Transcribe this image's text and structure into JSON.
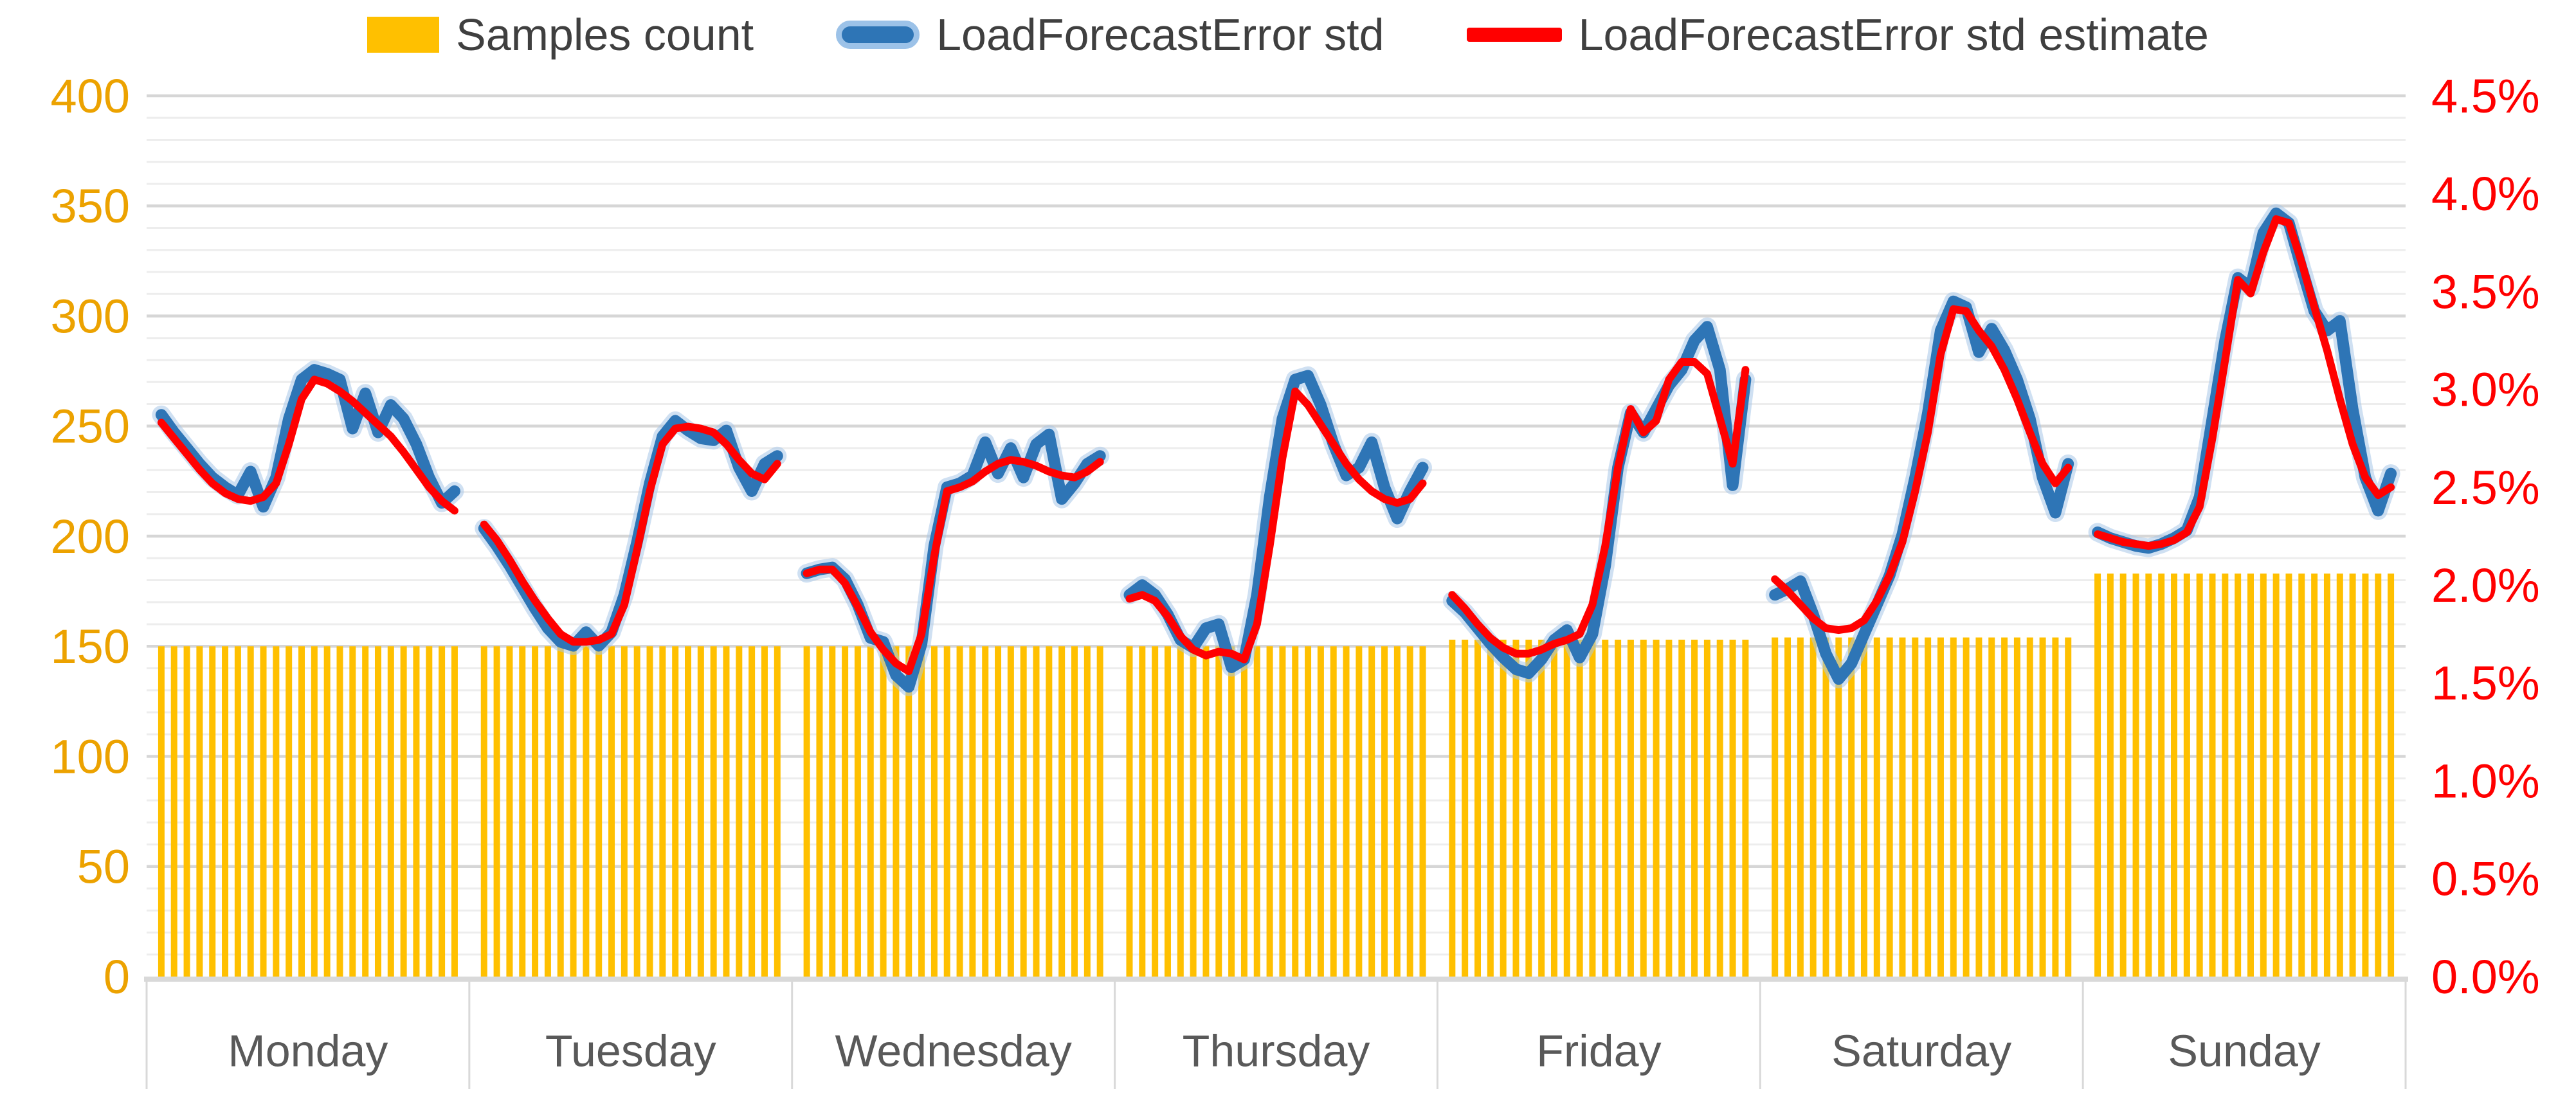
{
  "legend": {
    "items": [
      {
        "label": "Samples count",
        "swatch": "bar-swatch",
        "color": "#FFC000"
      },
      {
        "label": "LoadForecastError std",
        "swatch": "thick-line-swatch",
        "color": "#2E75B6",
        "halo_color": "#9CC2E8"
      },
      {
        "label": "LoadForecastError std estimate",
        "swatch": "thin-line-swatch",
        "color": "#FF0000"
      }
    ]
  },
  "chart_data": {
    "type": "combo: bar (left axis) + two lines (right axis), 24 hourly points per day",
    "title": "",
    "grid": "horizontal major every 50 (left units), minor every 10",
    "legend_position": "top-center",
    "categories": [
      "Monday",
      "Tuesday",
      "Wednesday",
      "Thursday",
      "Friday",
      "Saturday",
      "Sunday"
    ],
    "points_per_day": 24,
    "left_axis": {
      "ticks": [
        0,
        50,
        100,
        150,
        200,
        250,
        300,
        350,
        400
      ],
      "range": [
        0,
        400
      ],
      "label_color": "#ECA200",
      "side": "left"
    },
    "right_axis": {
      "ticks": [
        "0.0%",
        "0.5%",
        "1.0%",
        "1.5%",
        "2.0%",
        "2.5%",
        "3.0%",
        "3.5%",
        "4.0%",
        "4.5%"
      ],
      "range_pct": [
        0,
        4.5
      ],
      "label_color": "#FF0000",
      "side": "right"
    },
    "x_axis": {
      "label_color": "#595959"
    },
    "series": [
      {
        "name": "Samples count",
        "kind": "bar",
        "axis": "left",
        "color": "#FFC000",
        "constant_value_per_day": {
          "Monday": 150,
          "Tuesday": 150,
          "Wednesday": 150,
          "Thursday": 150,
          "Friday": 153,
          "Saturday": 154,
          "Sunday": 183
        }
      },
      {
        "name": "LoadForecastError std",
        "kind": "line",
        "axis": "right",
        "color": "#2E75B6",
        "halo_color": "#A8C7E8",
        "values_pct": {
          "Monday": [
            2.87,
            2.78,
            2.7,
            2.62,
            2.55,
            2.5,
            2.46,
            2.58,
            2.4,
            2.55,
            2.85,
            3.05,
            3.1,
            3.08,
            3.05,
            2.8,
            2.98,
            2.78,
            2.92,
            2.85,
            2.72,
            2.55,
            2.42,
            2.48
          ],
          "Tuesday": [
            2.29,
            2.2,
            2.1,
            1.99,
            1.88,
            1.78,
            1.71,
            1.69,
            1.76,
            1.69,
            1.76,
            1.95,
            2.22,
            2.52,
            2.76,
            2.84,
            2.79,
            2.75,
            2.74,
            2.79,
            2.6,
            2.48,
            2.62,
            2.66
          ],
          "Wednesday": [
            2.06,
            2.08,
            2.09,
            2.03,
            1.9,
            1.73,
            1.71,
            1.54,
            1.48,
            1.7,
            2.2,
            2.5,
            2.52,
            2.56,
            2.73,
            2.57,
            2.7,
            2.55,
            2.72,
            2.77,
            2.44,
            2.52,
            2.62,
            2.66
          ],
          "Thursday": [
            1.95,
            2.0,
            1.95,
            1.85,
            1.72,
            1.68,
            1.78,
            1.8,
            1.58,
            1.62,
            1.95,
            2.45,
            2.85,
            3.05,
            3.07,
            2.92,
            2.72,
            2.56,
            2.6,
            2.73,
            2.5,
            2.34,
            2.48,
            2.6
          ],
          "Friday": [
            1.92,
            1.86,
            1.78,
            1.7,
            1.63,
            1.57,
            1.55,
            1.62,
            1.72,
            1.77,
            1.63,
            1.75,
            2.1,
            2.6,
            2.88,
            2.78,
            2.9,
            3.02,
            3.1,
            3.25,
            3.32,
            3.1,
            2.51,
            3.05
          ],
          "Saturday": [
            1.95,
            1.98,
            2.02,
            1.85,
            1.65,
            1.52,
            1.6,
            1.75,
            1.9,
            2.05,
            2.26,
            2.55,
            2.88,
            3.3,
            3.45,
            3.42,
            3.19,
            3.31,
            3.2,
            3.05,
            2.85,
            2.55,
            2.37,
            2.62
          ],
          "Sunday": [
            2.27,
            2.24,
            2.22,
            2.2,
            2.19,
            2.21,
            2.24,
            2.28,
            2.45,
            2.85,
            3.25,
            3.57,
            3.52,
            3.8,
            3.9,
            3.85,
            3.62,
            3.4,
            3.3,
            3.35,
            2.9,
            2.55,
            2.38,
            2.57
          ]
        }
      },
      {
        "name": "LoadForecastError std estimate",
        "kind": "line",
        "axis": "right",
        "color": "#FF0000",
        "values_pct": {
          "Monday": [
            2.83,
            2.75,
            2.67,
            2.59,
            2.52,
            2.47,
            2.44,
            2.43,
            2.45,
            2.52,
            2.72,
            2.95,
            3.05,
            3.03,
            2.99,
            2.94,
            2.88,
            2.82,
            2.76,
            2.68,
            2.59,
            2.5,
            2.43,
            2.38
          ],
          "Tuesday": [
            2.31,
            2.23,
            2.13,
            2.02,
            1.92,
            1.83,
            1.75,
            1.71,
            1.71,
            1.72,
            1.75,
            1.9,
            2.18,
            2.48,
            2.72,
            2.8,
            2.81,
            2.8,
            2.78,
            2.72,
            2.64,
            2.57,
            2.54,
            2.62
          ],
          "Wednesday": [
            2.06,
            2.08,
            2.08,
            2.01,
            1.89,
            1.76,
            1.67,
            1.6,
            1.56,
            1.75,
            2.15,
            2.48,
            2.5,
            2.53,
            2.58,
            2.62,
            2.64,
            2.63,
            2.61,
            2.58,
            2.56,
            2.55,
            2.58,
            2.63
          ],
          "Thursday": [
            1.93,
            1.95,
            1.92,
            1.84,
            1.74,
            1.67,
            1.64,
            1.66,
            1.65,
            1.62,
            1.8,
            2.2,
            2.65,
            2.99,
            2.92,
            2.82,
            2.72,
            2.62,
            2.54,
            2.48,
            2.44,
            2.42,
            2.44,
            2.52
          ],
          "Friday": [
            1.95,
            1.88,
            1.8,
            1.73,
            1.68,
            1.65,
            1.65,
            1.67,
            1.7,
            1.72,
            1.75,
            1.9,
            2.2,
            2.6,
            2.9,
            2.78,
            2.84,
            3.05,
            3.14,
            3.14,
            3.08,
            2.85,
            2.62,
            3.1
          ],
          "Saturday": [
            2.03,
            1.97,
            1.9,
            1.83,
            1.78,
            1.77,
            1.78,
            1.82,
            1.92,
            2.05,
            2.22,
            2.48,
            2.78,
            3.18,
            3.41,
            3.4,
            3.3,
            3.22,
            3.1,
            2.95,
            2.78,
            2.62,
            2.52,
            2.6
          ],
          "Sunday": [
            2.26,
            2.24,
            2.22,
            2.21,
            2.2,
            2.21,
            2.23,
            2.27,
            2.4,
            2.75,
            3.15,
            3.56,
            3.49,
            3.7,
            3.87,
            3.85,
            3.65,
            3.42,
            3.2,
            2.95,
            2.72,
            2.55,
            2.46,
            2.5
          ]
        }
      }
    ],
    "style": {
      "bar_color": "#FFC000",
      "blue_line_color": "#2E75B6",
      "blue_halo_color": "#A8C7E8",
      "red_line_color": "#FF0000",
      "major_grid_color": "#D6D6D6",
      "minor_grid_color": "#EDEDED",
      "axis_line_color": "#D9D9D9",
      "day_label_color": "#595959",
      "background": "#FFFFFF"
    }
  }
}
